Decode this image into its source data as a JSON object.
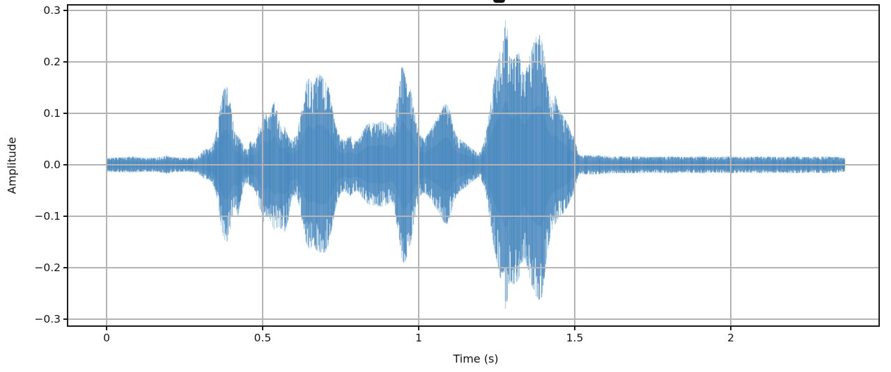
{
  "chart_data": {
    "type": "line",
    "variant": "audio-waveform",
    "title": "",
    "title_clipped_descender_visible": true,
    "xlabel": "Time (s)",
    "ylabel": "Amplitude",
    "xlim": [
      -0.121,
      2.475
    ],
    "ylim": [
      -0.312,
      0.312
    ],
    "grid": true,
    "legend": false,
    "duration_s": 2.364,
    "x_ticks": [
      {
        "value": 0.0,
        "label": "0"
      },
      {
        "value": 0.5,
        "label": "0.5"
      },
      {
        "value": 1.0,
        "label": "1"
      },
      {
        "value": 1.5,
        "label": "1.5"
      },
      {
        "value": 2.0,
        "label": "2"
      }
    ],
    "y_ticks": [
      {
        "value": 0.3,
        "label": "0.3"
      },
      {
        "value": 0.2,
        "label": "0.2"
      },
      {
        "value": 0.1,
        "label": "0.1"
      },
      {
        "value": 0.0,
        "label": "0.0"
      },
      {
        "value": -0.1,
        "label": "−0.1"
      },
      {
        "value": -0.2,
        "label": "−0.2"
      },
      {
        "value": -0.3,
        "label": "−0.3"
      }
    ],
    "colors": {
      "waveform": "#3a7eb8",
      "waveform_light": "#68a6d4",
      "grid": "#b4b4b4",
      "spine": "#1c1c1c",
      "text": "#111111",
      "background": "#ffffff"
    },
    "envelope": {
      "description": "Amplitude envelope of the plotted waveform; triples of [time_s, positive_peak, negative_peak_abs]",
      "points": [
        [
          0.0,
          0.013,
          0.013
        ],
        [
          0.04,
          0.014,
          0.014
        ],
        [
          0.08,
          0.016,
          0.015
        ],
        [
          0.12,
          0.013,
          0.013
        ],
        [
          0.16,
          0.014,
          0.014
        ],
        [
          0.19,
          0.018,
          0.017
        ],
        [
          0.22,
          0.014,
          0.014
        ],
        [
          0.26,
          0.013,
          0.013
        ],
        [
          0.29,
          0.015,
          0.015
        ],
        [
          0.305,
          0.026,
          0.024
        ],
        [
          0.315,
          0.032,
          0.03
        ],
        [
          0.325,
          0.028,
          0.027
        ],
        [
          0.335,
          0.035,
          0.033
        ],
        [
          0.345,
          0.05,
          0.045
        ],
        [
          0.355,
          0.075,
          0.07
        ],
        [
          0.365,
          0.12,
          0.115
        ],
        [
          0.375,
          0.148,
          0.145
        ],
        [
          0.385,
          0.152,
          0.15
        ],
        [
          0.392,
          0.135,
          0.138
        ],
        [
          0.4,
          0.1,
          0.105
        ],
        [
          0.41,
          0.062,
          0.08
        ],
        [
          0.42,
          0.055,
          0.1
        ],
        [
          0.43,
          0.048,
          0.065
        ],
        [
          0.44,
          0.032,
          0.04
        ],
        [
          0.45,
          0.03,
          0.035
        ],
        [
          0.46,
          0.046,
          0.042
        ],
        [
          0.47,
          0.04,
          0.045
        ],
        [
          0.48,
          0.052,
          0.06
        ],
        [
          0.49,
          0.085,
          0.09
        ],
        [
          0.5,
          0.105,
          0.115
        ],
        [
          0.51,
          0.098,
          0.1
        ],
        [
          0.52,
          0.092,
          0.1
        ],
        [
          0.53,
          0.115,
          0.12
        ],
        [
          0.54,
          0.128,
          0.13
        ],
        [
          0.55,
          0.09,
          0.12
        ],
        [
          0.56,
          0.065,
          0.125
        ],
        [
          0.57,
          0.075,
          0.13
        ],
        [
          0.58,
          0.055,
          0.11
        ],
        [
          0.59,
          0.048,
          0.07
        ],
        [
          0.6,
          0.052,
          0.06
        ],
        [
          0.61,
          0.065,
          0.065
        ],
        [
          0.62,
          0.095,
          0.09
        ],
        [
          0.63,
          0.135,
          0.13
        ],
        [
          0.64,
          0.162,
          0.155
        ],
        [
          0.65,
          0.17,
          0.165
        ],
        [
          0.66,
          0.152,
          0.155
        ],
        [
          0.67,
          0.168,
          0.165
        ],
        [
          0.68,
          0.176,
          0.17
        ],
        [
          0.69,
          0.172,
          0.172
        ],
        [
          0.7,
          0.162,
          0.17
        ],
        [
          0.71,
          0.15,
          0.155
        ],
        [
          0.72,
          0.118,
          0.125
        ],
        [
          0.73,
          0.082,
          0.09
        ],
        [
          0.74,
          0.062,
          0.07
        ],
        [
          0.75,
          0.052,
          0.055
        ],
        [
          0.76,
          0.046,
          0.05
        ],
        [
          0.77,
          0.052,
          0.055
        ],
        [
          0.78,
          0.056,
          0.06
        ],
        [
          0.79,
          0.05,
          0.055
        ],
        [
          0.8,
          0.046,
          0.05
        ],
        [
          0.81,
          0.052,
          0.055
        ],
        [
          0.82,
          0.066,
          0.065
        ],
        [
          0.83,
          0.076,
          0.072
        ],
        [
          0.84,
          0.081,
          0.078
        ],
        [
          0.85,
          0.083,
          0.08
        ],
        [
          0.86,
          0.079,
          0.078
        ],
        [
          0.87,
          0.081,
          0.08
        ],
        [
          0.88,
          0.086,
          0.082
        ],
        [
          0.89,
          0.083,
          0.08
        ],
        [
          0.9,
          0.079,
          0.077
        ],
        [
          0.91,
          0.071,
          0.07
        ],
        [
          0.92,
          0.082,
          0.08
        ],
        [
          0.93,
          0.125,
          0.12
        ],
        [
          0.94,
          0.165,
          0.16
        ],
        [
          0.945,
          0.193,
          0.185
        ],
        [
          0.952,
          0.182,
          0.191
        ],
        [
          0.958,
          0.162,
          0.185
        ],
        [
          0.965,
          0.148,
          0.17
        ],
        [
          0.972,
          0.152,
          0.16
        ],
        [
          0.98,
          0.122,
          0.125
        ],
        [
          0.99,
          0.085,
          0.09
        ],
        [
          1.0,
          0.062,
          0.065
        ],
        [
          1.01,
          0.052,
          0.055
        ],
        [
          1.02,
          0.052,
          0.055
        ],
        [
          1.03,
          0.062,
          0.06
        ],
        [
          1.04,
          0.072,
          0.07
        ],
        [
          1.05,
          0.082,
          0.08
        ],
        [
          1.06,
          0.092,
          0.09
        ],
        [
          1.07,
          0.102,
          0.1
        ],
        [
          1.08,
          0.116,
          0.112
        ],
        [
          1.09,
          0.118,
          0.115
        ],
        [
          1.1,
          0.102,
          0.1
        ],
        [
          1.11,
          0.072,
          0.075
        ],
        [
          1.12,
          0.056,
          0.06
        ],
        [
          1.13,
          0.05,
          0.052
        ],
        [
          1.14,
          0.046,
          0.048
        ],
        [
          1.15,
          0.041,
          0.043
        ],
        [
          1.16,
          0.036,
          0.038
        ],
        [
          1.17,
          0.031,
          0.033
        ],
        [
          1.18,
          0.026,
          0.028
        ],
        [
          1.19,
          0.021,
          0.023
        ],
        [
          1.2,
          0.03,
          0.03
        ],
        [
          1.21,
          0.046,
          0.045
        ],
        [
          1.22,
          0.082,
          0.08
        ],
        [
          1.23,
          0.122,
          0.12
        ],
        [
          1.24,
          0.162,
          0.16
        ],
        [
          1.25,
          0.192,
          0.19
        ],
        [
          1.26,
          0.222,
          0.22
        ],
        [
          1.27,
          0.252,
          0.25
        ],
        [
          1.277,
          0.282,
          0.281
        ],
        [
          1.284,
          0.262,
          0.26
        ],
        [
          1.29,
          0.212,
          0.225
        ],
        [
          1.3,
          0.202,
          0.232
        ],
        [
          1.31,
          0.212,
          0.23
        ],
        [
          1.32,
          0.218,
          0.222
        ],
        [
          1.33,
          0.182,
          0.19
        ],
        [
          1.34,
          0.172,
          0.18
        ],
        [
          1.35,
          0.202,
          0.21
        ],
        [
          1.36,
          0.222,
          0.232
        ],
        [
          1.37,
          0.242,
          0.25
        ],
        [
          1.381,
          0.256,
          0.262
        ],
        [
          1.39,
          0.248,
          0.268
        ],
        [
          1.4,
          0.222,
          0.232
        ],
        [
          1.41,
          0.162,
          0.172
        ],
        [
          1.42,
          0.132,
          0.142
        ],
        [
          1.43,
          0.122,
          0.118
        ],
        [
          1.437,
          0.136,
          0.115
        ],
        [
          1.445,
          0.112,
          0.105
        ],
        [
          1.455,
          0.102,
          0.1
        ],
        [
          1.465,
          0.092,
          0.092
        ],
        [
          1.475,
          0.082,
          0.082
        ],
        [
          1.485,
          0.066,
          0.068
        ],
        [
          1.495,
          0.056,
          0.058
        ],
        [
          1.503,
          0.04,
          0.042
        ],
        [
          1.51,
          0.02,
          0.02
        ],
        [
          1.52,
          0.018,
          0.018
        ],
        [
          1.56,
          0.019,
          0.019
        ],
        [
          1.6,
          0.017,
          0.017
        ],
        [
          1.65,
          0.016,
          0.016
        ],
        [
          1.7,
          0.016,
          0.016
        ],
        [
          1.75,
          0.015,
          0.015
        ],
        [
          1.8,
          0.016,
          0.016
        ],
        [
          1.85,
          0.015,
          0.015
        ],
        [
          1.9,
          0.016,
          0.016
        ],
        [
          1.95,
          0.015,
          0.015
        ],
        [
          2.0,
          0.016,
          0.016
        ],
        [
          2.05,
          0.015,
          0.015
        ],
        [
          2.1,
          0.016,
          0.016
        ],
        [
          2.15,
          0.015,
          0.015
        ],
        [
          2.2,
          0.016,
          0.016
        ],
        [
          2.25,
          0.015,
          0.015
        ],
        [
          2.3,
          0.016,
          0.016
        ],
        [
          2.34,
          0.015,
          0.015
        ],
        [
          2.364,
          0.013,
          0.013
        ]
      ]
    }
  }
}
